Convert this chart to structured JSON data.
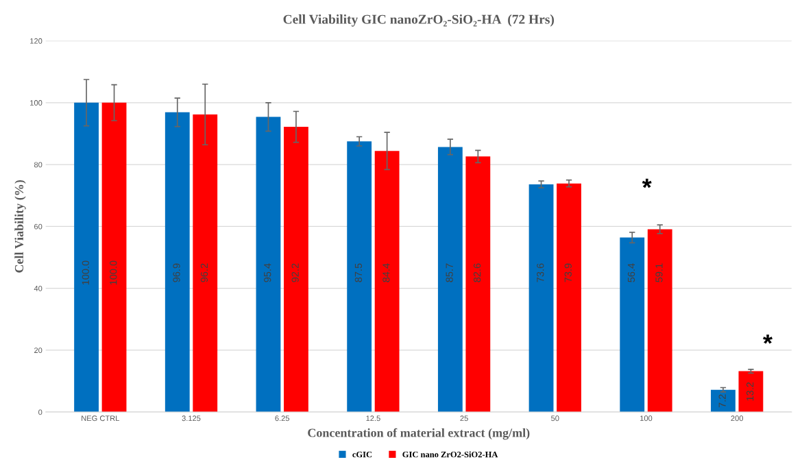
{
  "chart_data": {
    "type": "bar",
    "title": "Cell Viability GIC nanoZrO₂-SiO₂-HA  (72 Hrs)",
    "xlabel": "Concentration of material extract (mg/ml)",
    "ylabel": "Cell Viability (%)",
    "categories": [
      "NEG CTRL",
      "3.125",
      "6.25",
      "12.5",
      "25",
      "50",
      "100",
      "200"
    ],
    "series": [
      {
        "name": "cGIC",
        "color": "#0070c0",
        "values": [
          100.0,
          96.9,
          95.4,
          87.5,
          85.7,
          73.6,
          56.4,
          7.2
        ],
        "errors": [
          7.5,
          4.6,
          4.6,
          1.5,
          2.5,
          1.1,
          1.7,
          0.7
        ],
        "value_labels": [
          "100.0",
          "96.9",
          "95.4",
          "87.5",
          "85.7",
          "73.6",
          "56.4",
          "7.2"
        ]
      },
      {
        "name": "GIC nano ZrO2-SiO2-HA",
        "color": "#ff0000",
        "values": [
          100.0,
          96.2,
          92.2,
          84.4,
          82.6,
          73.9,
          59.1,
          13.2
        ],
        "errors": [
          5.8,
          9.8,
          5.0,
          6.0,
          2.0,
          1.1,
          1.4,
          0.6
        ],
        "value_labels": [
          "100.0",
          "96.2",
          "92.2",
          "84.4",
          "82.6",
          "73.9",
          "59.1",
          "13.2"
        ]
      }
    ],
    "annotations": [
      "*",
      "*"
    ],
    "ylim": [
      0,
      120
    ],
    "yticks": [
      0,
      20,
      40,
      60,
      80,
      100,
      120
    ],
    "grid": "y",
    "legend": "bottom"
  }
}
